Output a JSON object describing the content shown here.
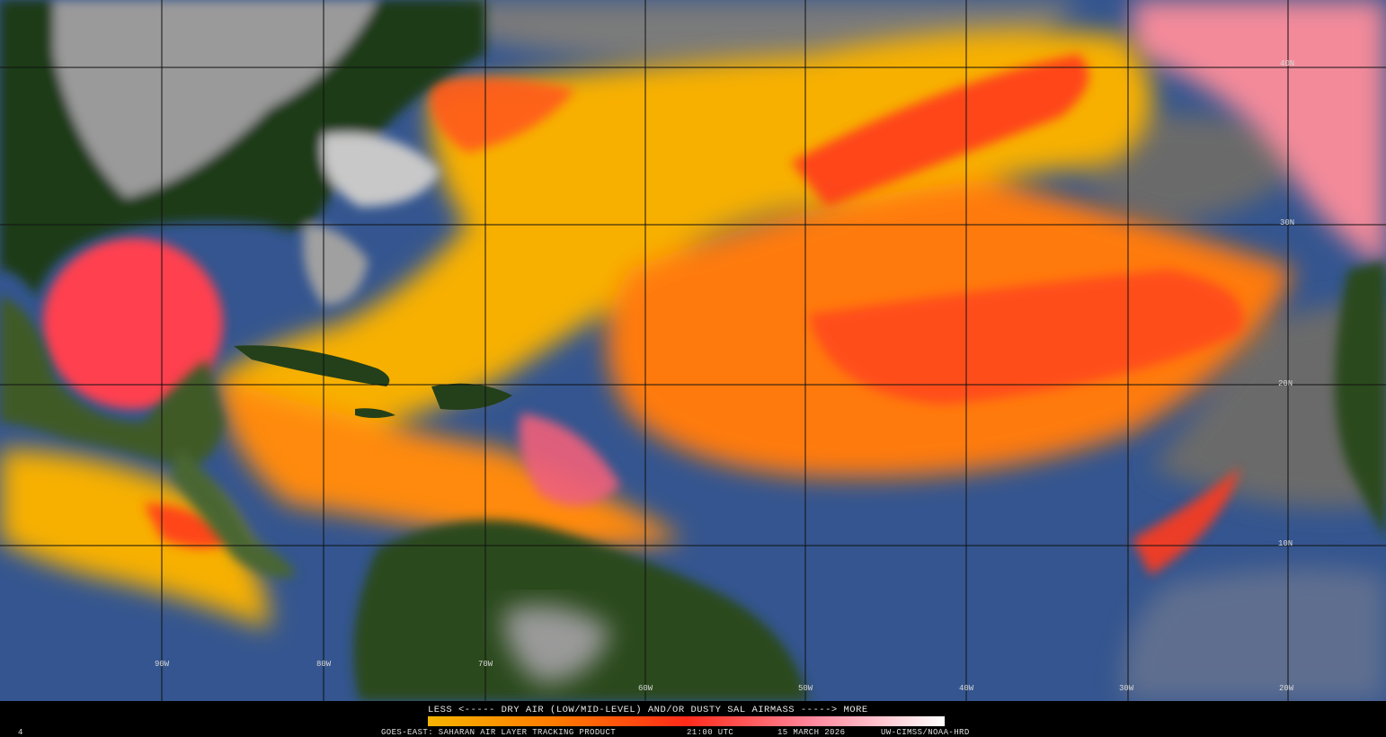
{
  "map": {
    "lat_labels": [
      "40N",
      "30N",
      "20N",
      "10N"
    ],
    "lon_labels": [
      "90W",
      "80W",
      "70W",
      "60W",
      "50W",
      "40W",
      "30W",
      "20W"
    ]
  },
  "legend": {
    "caption": "LESS <----- DRY AIR (LOW/MID-LEVEL) AND/OR DUSTY SAL AIRMASS -----> MORE"
  },
  "footer": {
    "corner": "4",
    "product": "GOES-EAST: SAHARAN AIR LAYER TRACKING PRODUCT",
    "time": "21:00 UTC",
    "date": "15 MARCH 2026",
    "credit": "UW-CIMSS/NOAA-HRD"
  }
}
